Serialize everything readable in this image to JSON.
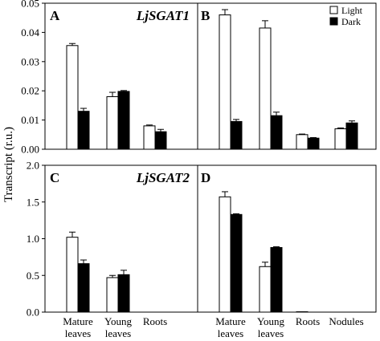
{
  "ylabel": "Transcript (r.u.)",
  "legend": [
    {
      "label": "Light",
      "fill": "#ffffff"
    },
    {
      "label": "Dark",
      "fill": "#000000"
    }
  ],
  "chart_data": [
    {
      "panel": "A",
      "gene": "LjSGAT1",
      "type": "bar",
      "categories": [
        "Mature leaves",
        "Young leaves",
        "Roots"
      ],
      "series": [
        {
          "name": "Light",
          "values": [
            0.0355,
            0.018,
            0.008
          ],
          "errors": [
            0.0007,
            0.0015,
            0.0003
          ]
        },
        {
          "name": "Dark",
          "values": [
            0.013,
            0.0198,
            0.006
          ],
          "errors": [
            0.001,
            0.0003,
            0.0008
          ]
        }
      ],
      "ylim": [
        0,
        0.05
      ],
      "yticks": [
        "0.00",
        "0.01",
        "0.02",
        "0.03",
        "0.04",
        "0.05"
      ]
    },
    {
      "panel": "B",
      "gene": "",
      "type": "bar",
      "categories": [
        "Mature leaves",
        "Young leaves",
        "Roots",
        "Nodules"
      ],
      "series": [
        {
          "name": "Light",
          "values": [
            0.046,
            0.0415,
            0.005,
            0.007
          ],
          "errors": [
            0.0018,
            0.0025,
            0.0002,
            0.0003
          ]
        },
        {
          "name": "Dark",
          "values": [
            0.0095,
            0.0115,
            0.0038,
            0.009
          ],
          "errors": [
            0.0007,
            0.0012,
            0.0002,
            0.0007
          ]
        }
      ],
      "ylim": [
        0,
        0.05
      ]
    },
    {
      "panel": "C",
      "gene": "LjSGAT2",
      "type": "bar",
      "categories": [
        "Mature leaves",
        "Young leaves",
        "Roots"
      ],
      "series": [
        {
          "name": "Light",
          "values": [
            1.02,
            0.47,
            0.0
          ],
          "errors": [
            0.07,
            0.03,
            0.0
          ]
        },
        {
          "name": "Dark",
          "values": [
            0.66,
            0.51,
            0.0
          ],
          "errors": [
            0.05,
            0.06,
            0.0
          ]
        }
      ],
      "ylim": [
        0,
        2.0
      ],
      "yticks": [
        "0.0",
        "0.5",
        "1.0",
        "1.5",
        "2.0"
      ]
    },
    {
      "panel": "D",
      "gene": "",
      "type": "bar",
      "categories": [
        "Mature leaves",
        "Young leaves",
        "Roots",
        "Nodules"
      ],
      "series": [
        {
          "name": "Light",
          "values": [
            1.57,
            0.62,
            0.005,
            0.0
          ],
          "errors": [
            0.07,
            0.06,
            0.0,
            0.0
          ]
        },
        {
          "name": "Dark",
          "values": [
            1.33,
            0.88,
            0.0,
            0.0
          ],
          "errors": [
            0.01,
            0.01,
            0.0,
            0.0
          ]
        }
      ],
      "ylim": [
        0,
        2.0
      ]
    }
  ],
  "xlabels": [
    {
      "line1": "Mature",
      "line2": "leaves"
    },
    {
      "line1": "Young",
      "line2": "leaves"
    },
    {
      "line1": "Roots",
      "line2": ""
    },
    {
      "line1": "Nodules",
      "line2": ""
    }
  ]
}
